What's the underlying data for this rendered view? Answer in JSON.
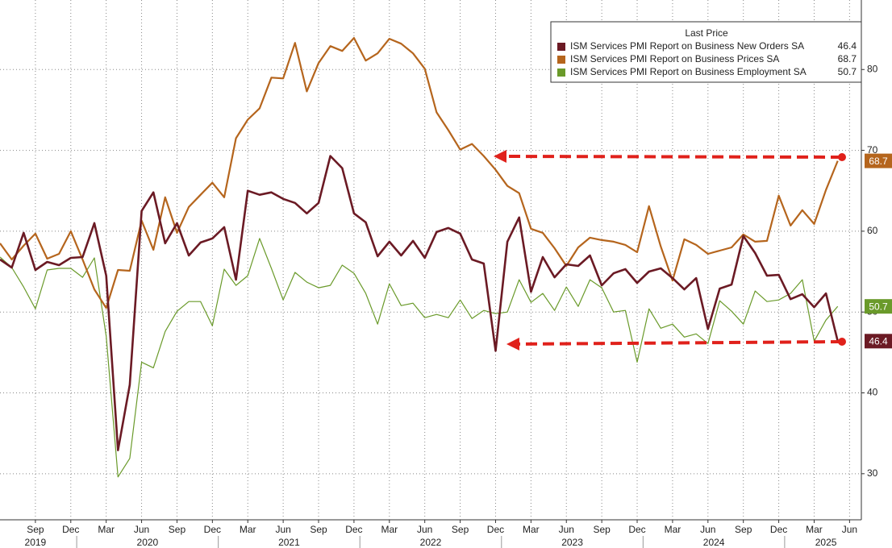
{
  "chart_data": {
    "type": "line",
    "legend_title": "Last Price",
    "x": [
      "2019-06",
      "2019-07",
      "2019-08",
      "2019-09",
      "2019-10",
      "2019-11",
      "2019-12",
      "2020-01",
      "2020-02",
      "2020-03",
      "2020-04",
      "2020-05",
      "2020-06",
      "2020-07",
      "2020-08",
      "2020-09",
      "2020-10",
      "2020-11",
      "2020-12",
      "2021-01",
      "2021-02",
      "2021-03",
      "2021-04",
      "2021-05",
      "2021-06",
      "2021-07",
      "2021-08",
      "2021-09",
      "2021-10",
      "2021-11",
      "2021-12",
      "2022-01",
      "2022-02",
      "2022-03",
      "2022-04",
      "2022-05",
      "2022-06",
      "2022-07",
      "2022-08",
      "2022-09",
      "2022-10",
      "2022-11",
      "2022-12",
      "2023-01",
      "2023-02",
      "2023-03",
      "2023-04",
      "2023-05",
      "2023-06",
      "2023-07",
      "2023-08",
      "2023-09",
      "2023-10",
      "2023-11",
      "2023-12",
      "2024-01",
      "2024-02",
      "2024-03",
      "2024-04",
      "2024-05",
      "2024-06",
      "2024-07",
      "2024-08",
      "2024-09",
      "2024-10",
      "2024-11",
      "2024-12",
      "2025-01",
      "2025-02",
      "2025-03",
      "2025-04",
      "2025-05"
    ],
    "series": [
      {
        "name": "ISM Services PMI Report on Business New Orders SA",
        "color": "#6b1a24",
        "width": 2.6,
        "values": [
          56.5,
          55.5,
          59.8,
          55.2,
          56.2,
          55.8,
          56.7,
          56.8,
          61.0,
          54.5,
          32.9,
          41.0,
          62.5,
          64.8,
          58.5,
          61.0,
          57.0,
          58.6,
          59.1,
          60.5,
          54.0,
          65.0,
          64.5,
          64.8,
          64.0,
          63.5,
          62.2,
          63.5,
          69.3,
          67.8,
          62.2,
          61.1,
          56.9,
          58.7,
          57.0,
          58.8,
          56.7,
          59.9,
          60.4,
          59.7,
          56.5,
          56.0,
          45.2,
          58.7,
          61.7,
          52.5,
          56.8,
          54.3,
          55.9,
          55.7,
          57.0,
          53.3,
          54.8,
          55.3,
          53.6,
          55.0,
          55.4,
          54.2,
          52.8,
          54.2,
          47.9,
          52.9,
          53.4,
          59.4,
          57.3,
          54.5,
          54.6,
          51.6,
          52.2,
          50.6,
          52.3,
          46.4
        ]
      },
      {
        "name": "ISM Services PMI Report on Business Prices SA",
        "color": "#b5651d",
        "width": 2.2,
        "values": [
          58.5,
          56.5,
          58.2,
          59.7,
          56.6,
          57.2,
          60.0,
          56.5,
          52.8,
          50.5,
          55.2,
          55.1,
          61.3,
          57.7,
          64.2,
          59.8,
          63.0,
          64.5,
          66.0,
          64.2,
          71.5,
          73.8,
          75.2,
          79.0,
          78.9,
          83.3,
          77.3,
          80.8,
          82.9,
          82.3,
          83.9,
          81.1,
          82.0,
          83.8,
          83.2,
          82.0,
          80.1,
          74.7,
          72.5,
          70.1,
          70.8,
          69.3,
          67.6,
          65.6,
          64.7,
          60.3,
          59.8,
          57.9,
          55.7,
          58.0,
          59.2,
          58.9,
          58.7,
          58.3,
          57.4,
          63.1,
          58.1,
          53.9,
          59.0,
          58.3,
          57.2,
          57.6,
          58.0,
          59.6,
          58.7,
          58.8,
          64.4,
          60.7,
          62.6,
          60.9,
          65.1,
          68.7
        ]
      },
      {
        "name": "ISM Services PMI Report on Business Employment SA",
        "color": "#6a9a2a",
        "width": 1.2,
        "values": [
          56.8,
          55.5,
          53.1,
          50.4,
          55.2,
          55.4,
          55.4,
          54.3,
          56.7,
          47.0,
          29.6,
          31.9,
          43.8,
          43.1,
          47.6,
          50.1,
          51.3,
          51.3,
          48.3,
          55.3,
          53.3,
          54.5,
          59.1,
          55.4,
          51.5,
          54.9,
          53.7,
          53.0,
          53.3,
          55.8,
          54.8,
          52.3,
          48.5,
          53.5,
          50.8,
          51.1,
          49.3,
          49.7,
          49.3,
          51.5,
          49.2,
          50.2,
          49.8,
          50.0,
          54.0,
          51.2,
          52.3,
          50.2,
          53.1,
          50.7,
          54.0,
          53.0,
          50.0,
          50.2,
          43.8,
          50.4,
          48.0,
          48.5,
          46.9,
          47.3,
          46.1,
          51.4,
          50.1,
          48.5,
          52.6,
          51.3,
          51.5,
          52.3,
          54.0,
          46.4,
          49.0,
          50.7
        ]
      }
    ],
    "xlim": [
      "2019-06",
      "2025-07"
    ],
    "xticks": [
      {
        "value": "2019-09",
        "label": "Sep"
      },
      {
        "value": "2019-12",
        "label": "Dec"
      },
      {
        "value": "2020-03",
        "label": "Mar"
      },
      {
        "value": "2020-06",
        "label": "Jun"
      },
      {
        "value": "2020-09",
        "label": "Sep"
      },
      {
        "value": "2020-12",
        "label": "Dec"
      },
      {
        "value": "2021-03",
        "label": "Mar"
      },
      {
        "value": "2021-06",
        "label": "Jun"
      },
      {
        "value": "2021-09",
        "label": "Sep"
      },
      {
        "value": "2021-12",
        "label": "Dec"
      },
      {
        "value": "2022-03",
        "label": "Mar"
      },
      {
        "value": "2022-06",
        "label": "Jun"
      },
      {
        "value": "2022-09",
        "label": "Sep"
      },
      {
        "value": "2022-12",
        "label": "Dec"
      },
      {
        "value": "2023-03",
        "label": "Mar"
      },
      {
        "value": "2023-06",
        "label": "Jun"
      },
      {
        "value": "2023-09",
        "label": "Sep"
      },
      {
        "value": "2023-12",
        "label": "Dec"
      },
      {
        "value": "2024-03",
        "label": "Mar"
      },
      {
        "value": "2024-06",
        "label": "Jun"
      },
      {
        "value": "2024-09",
        "label": "Sep"
      },
      {
        "value": "2024-12",
        "label": "Dec"
      },
      {
        "value": "2025-03",
        "label": "Mar"
      },
      {
        "value": "2025-06",
        "label": "Jun"
      }
    ],
    "years": [
      "2019",
      "2020",
      "2021",
      "2022",
      "2023",
      "2024",
      "2025"
    ],
    "ylim": [
      24.3,
      88.6
    ],
    "yticks": [
      30,
      40,
      50,
      60,
      70,
      80
    ],
    "grid": true
  }
}
